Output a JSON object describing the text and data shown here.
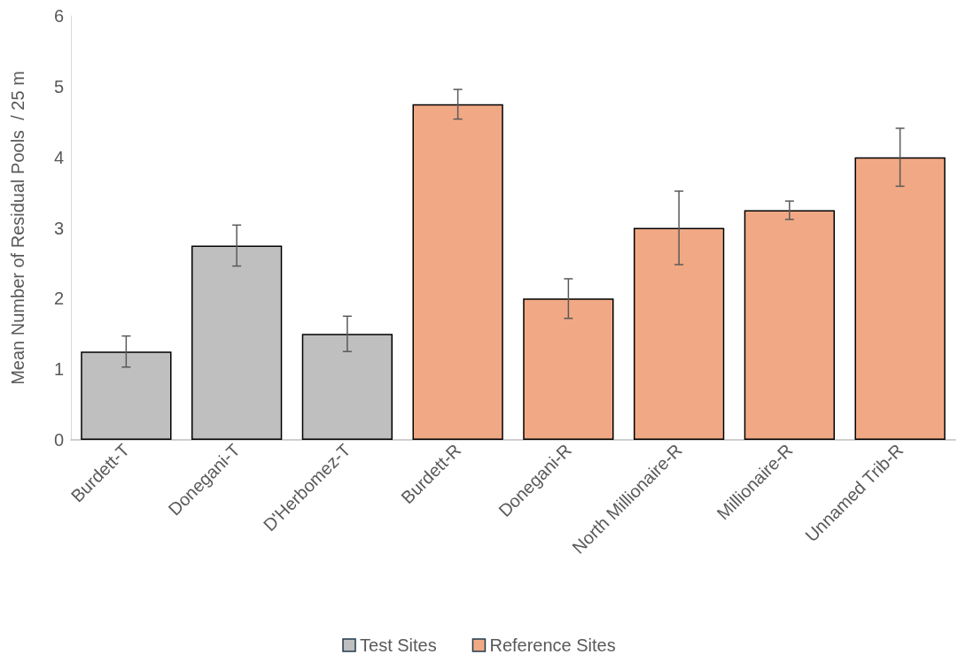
{
  "chart_data": {
    "type": "bar",
    "ylabel": "Mean Number of Residual Pools  / 25 m",
    "categories": [
      "Burdett-T",
      "Donegani-T",
      "D'Herbomez-T",
      "Burdett-R",
      "Donegani-R",
      "North Millionaire-R",
      "Millionaire-R",
      "Unnamed Trib-R"
    ],
    "series": [
      {
        "name": "Test Sites",
        "color": "#bfbfbf",
        "values": [
          1.25,
          2.75,
          1.5,
          null,
          null,
          null,
          null,
          null
        ],
        "errors": [
          0.22,
          0.29,
          0.25,
          null,
          null,
          null,
          null,
          null
        ]
      },
      {
        "name": "Reference Sites",
        "color": "#f1a985",
        "values": [
          null,
          null,
          null,
          4.75,
          2.0,
          3.0,
          3.25,
          4.0
        ],
        "errors": [
          null,
          null,
          null,
          0.21,
          0.28,
          0.52,
          0.13,
          0.41
        ]
      }
    ],
    "ylim": [
      0,
      6
    ],
    "yticks": [
      0,
      1,
      2,
      3,
      4,
      5,
      6
    ],
    "grid": false,
    "legend": "bottom"
  }
}
